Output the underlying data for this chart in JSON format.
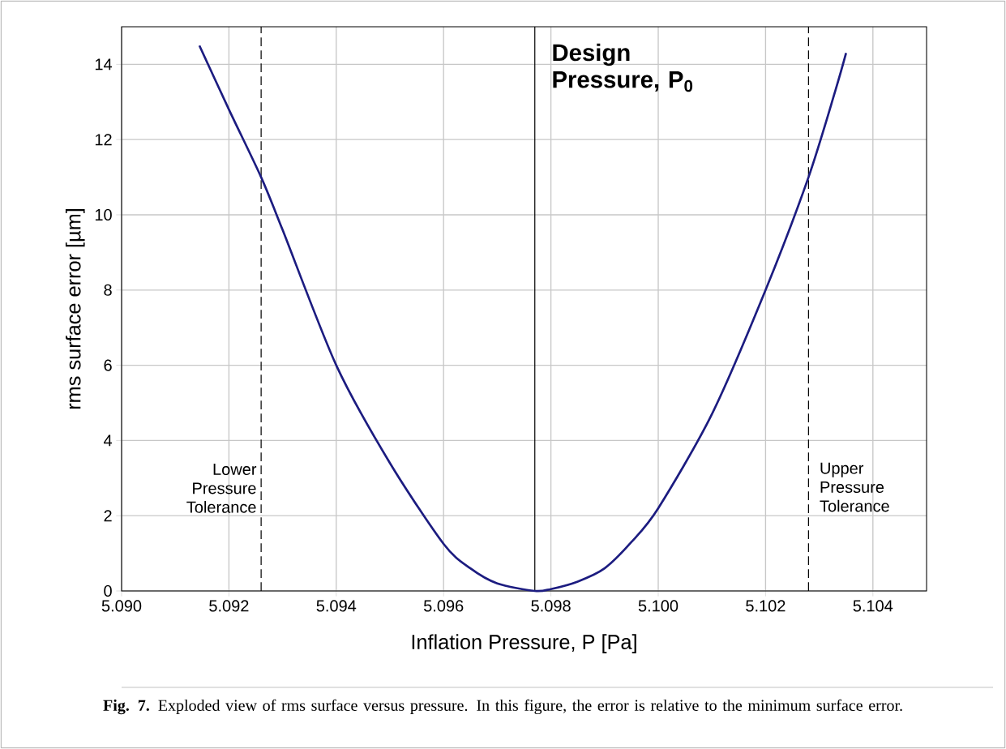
{
  "chart_data": {
    "type": "line",
    "xlabel": "Inflation Pressure, P [Pa]",
    "ylabel": "rms surface error [µm]",
    "x": [
      5.09145,
      5.092,
      5.0926,
      5.093,
      5.094,
      5.095,
      5.096,
      5.0965,
      5.097,
      5.0977,
      5.098,
      5.0985,
      5.099,
      5.0995,
      5.1,
      5.101,
      5.102,
      5.1028,
      5.1033,
      5.1035
    ],
    "series": [
      {
        "color": "#1c1c80",
        "values": [
          14.5,
          12.8,
          11,
          9.6,
          6.0,
          3.4,
          1.25,
          0.6,
          0.2,
          0,
          0.05,
          0.25,
          0.6,
          1.3,
          2.2,
          4.7,
          8.0,
          11,
          13.3,
          14.3
        ]
      }
    ],
    "xlim": [
      5.09,
      5.105
    ],
    "ylim": [
      0,
      15
    ],
    "xticks": [
      {
        "value": 5.09,
        "label": "5.090"
      },
      {
        "value": 5.092,
        "label": "5.092"
      },
      {
        "value": 5.094,
        "label": "5.094"
      },
      {
        "value": 5.096,
        "label": "5.096"
      },
      {
        "value": 5.098,
        "label": "5.098"
      },
      {
        "value": 5.1,
        "label": "5.100"
      },
      {
        "value": 5.102,
        "label": "5.102"
      },
      {
        "value": 5.104,
        "label": "5.104"
      }
    ],
    "yticks": [
      0,
      2,
      4,
      6,
      8,
      10,
      12,
      14
    ],
    "grid": true,
    "marker": "none",
    "line_style": "solid",
    "ref_lines": [
      {
        "axis": "x",
        "value": 5.0926,
        "label": "Lower Pressure Tolerance",
        "line_style": "dashed",
        "color": "#000000"
      },
      {
        "axis": "x",
        "value": 5.0977,
        "label": "Design Pressure, P$_{0}$",
        "line_style": "solid",
        "color": "#000000"
      },
      {
        "axis": "x",
        "value": 5.1028,
        "label": "Upper Pressure Tolerance",
        "line_style": "dashed",
        "color": "#000000"
      }
    ],
    "annotations": [
      "**Fig. 7.** Exploded view of rms surface versus pressure. In this figure, the error is relative to the minimum surface error."
    ]
  }
}
